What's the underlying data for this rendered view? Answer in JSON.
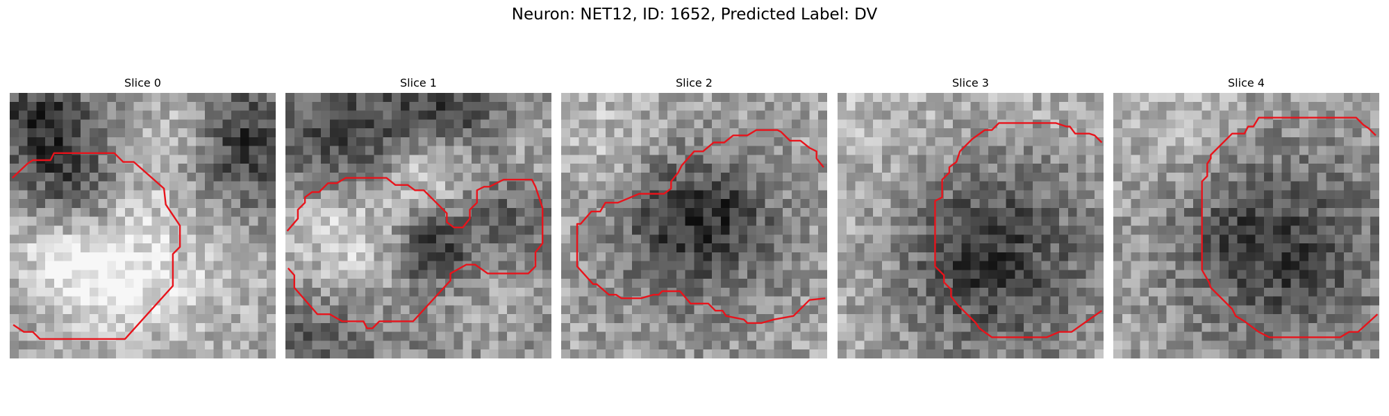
{
  "figure": {
    "title": "Neuron: NET12, ID: 1652, Predicted Label: DV"
  },
  "panels": [
    {
      "title": "Slice 0"
    },
    {
      "title": "Slice 1"
    },
    {
      "title": "Slice 2"
    },
    {
      "title": "Slice 3"
    },
    {
      "title": "Slice 4"
    }
  ],
  "colors": {
    "contour": "#e8131b",
    "pixel_dark": "#1a1a1a",
    "pixel_light": "#f0f0f0"
  }
}
